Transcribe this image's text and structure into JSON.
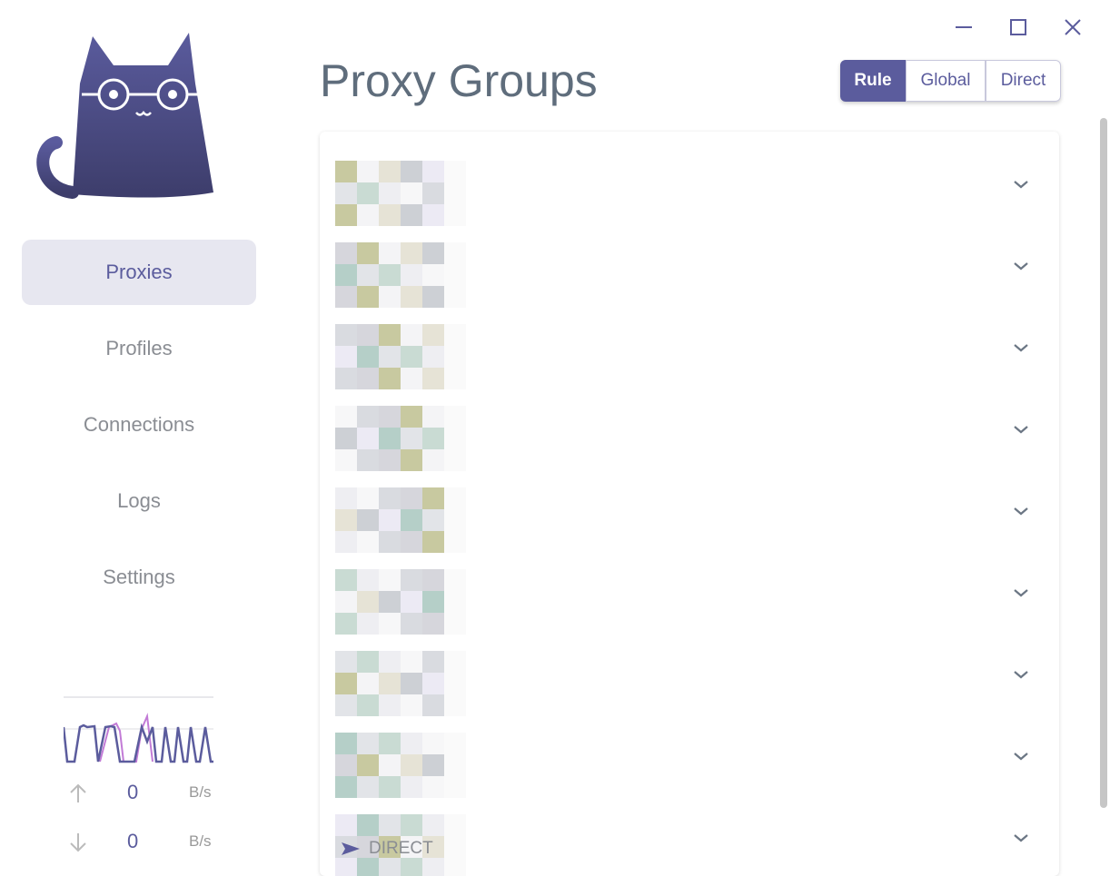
{
  "window": {
    "controls": [
      "minimize",
      "maximize",
      "close"
    ]
  },
  "sidebar": {
    "items": [
      {
        "label": "Proxies",
        "active": true
      },
      {
        "label": "Profiles"
      },
      {
        "label": "Connections"
      },
      {
        "label": "Logs"
      },
      {
        "label": "Settings"
      }
    ]
  },
  "traffic": {
    "upload_value": "0",
    "upload_unit": "B/s",
    "download_value": "0",
    "download_unit": "B/s"
  },
  "header": {
    "title": "Proxy Groups"
  },
  "mode": {
    "options": [
      "Rule",
      "Global",
      "Direct"
    ],
    "selected": "Rule"
  },
  "groups": {
    "count_rows": 9,
    "last_selected_proxy": "DIRECT"
  },
  "colors": {
    "accent": "#5b5c9d",
    "upload_line": "#5b5c9d",
    "download_line": "#c27bd6"
  }
}
